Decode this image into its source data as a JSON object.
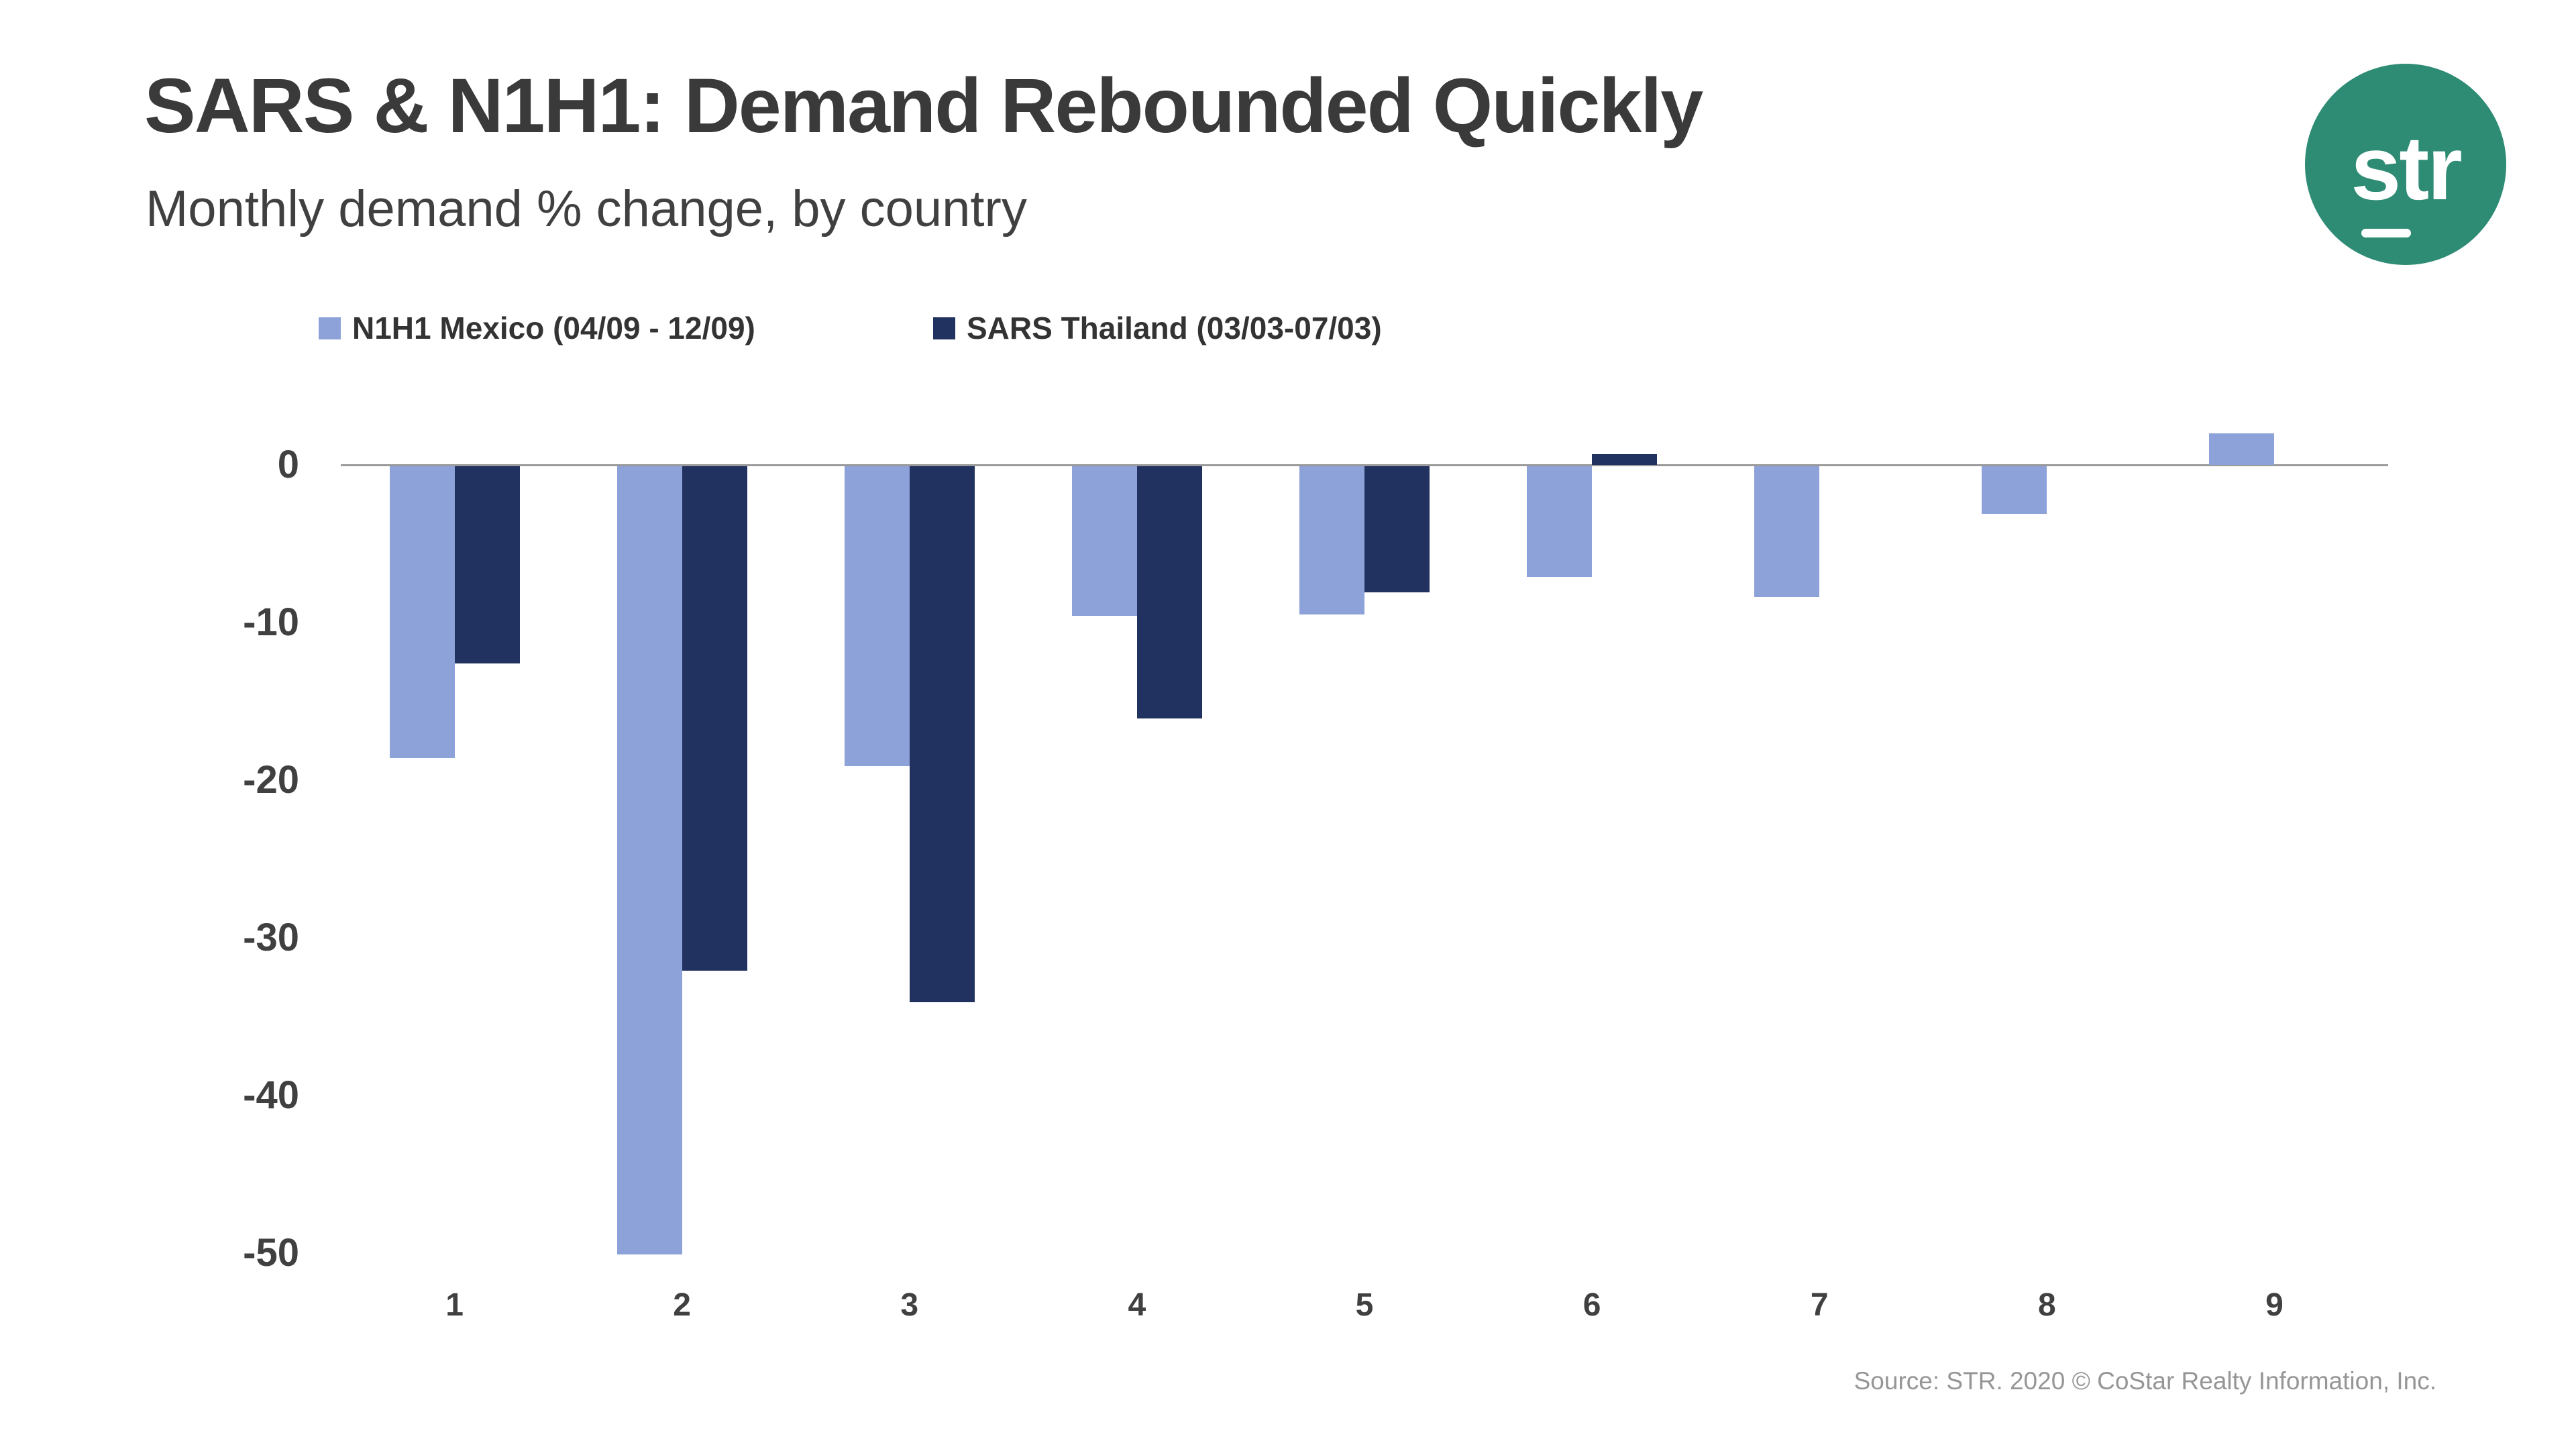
{
  "title": "SARS & N1H1: Demand Rebounded Quickly",
  "subtitle": "Monthly demand % change, by country",
  "logo": {
    "text": "str",
    "bg_color": "#2e8b74"
  },
  "source": "Source: STR. 2020 © CoStar Realty Information, Inc.",
  "chart_data": {
    "type": "bar",
    "categories": [
      "1",
      "2",
      "3",
      "4",
      "5",
      "6",
      "7",
      "8",
      "9"
    ],
    "series": [
      {
        "name": "N1H1 Mexico (04/09 - 12/09)",
        "color": "#8ea2da",
        "values": [
          -18.5,
          -50,
          -19,
          -9.5,
          -9.4,
          -7,
          -8.3,
          -3,
          2
        ]
      },
      {
        "name": "SARS Thailand (03/03-07/03)",
        "color": "#213261",
        "values": [
          -12.5,
          -32,
          -34,
          -16,
          -8,
          0.7,
          null,
          null,
          null
        ]
      }
    ],
    "title": "SARS & N1H1: Demand Rebounded Quickly",
    "subtitle": "Monthly demand % change, by country",
    "xlabel": "",
    "ylabel": "",
    "yticks": [
      0,
      -10,
      -20,
      -30,
      -40,
      -50
    ],
    "ylim": [
      -50,
      5
    ],
    "grid": "zero-line-only",
    "legend_position": "top-left"
  }
}
